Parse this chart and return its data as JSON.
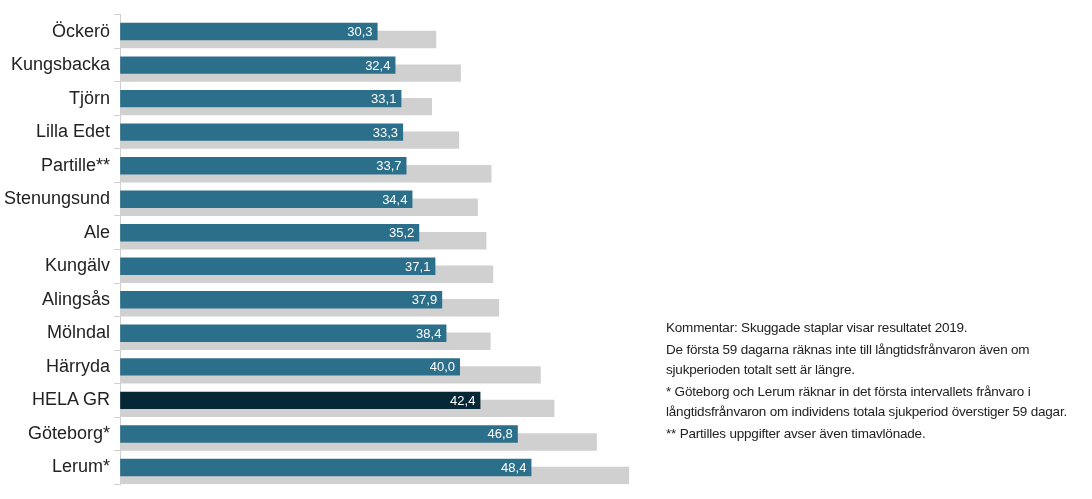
{
  "chart_data": {
    "type": "bar",
    "orientation": "horizontal",
    "legend": false,
    "tick_labels": "y",
    "categories": [
      "Öckerö",
      "Kungsbacka",
      "Tjörn",
      "Lilla Edet",
      "Partille**",
      "Stenungsund",
      "Ale",
      "Kungälv",
      "Alingsås",
      "Mölndal",
      "Härryda",
      "HELA GR",
      "Göteborg*",
      "Lerum*"
    ],
    "series": [
      {
        "colors": [
          "#2c6f8a",
          "#2c6f8a",
          "#2c6f8a",
          "#2c6f8a",
          "#2c6f8a",
          "#2c6f8a",
          "#2c6f8a",
          "#2c6f8a",
          "#2c6f8a",
          "#2c6f8a",
          "#2c6f8a",
          "#062735",
          "#2c6f8a",
          "#2c6f8a"
        ],
        "values": [
          30.3,
          32.4,
          33.1,
          33.3,
          33.7,
          34.4,
          35.2,
          37.1,
          37.9,
          38.4,
          40.0,
          42.4,
          46.8,
          48.4
        ],
        "value_labels": [
          "30,3",
          "32,4",
          "33,1",
          "33,3",
          "33,7",
          "34,4",
          "35,2",
          "37,1",
          "37,9",
          "38,4",
          "40,0",
          "42,4",
          "46,8",
          "48,4"
        ]
      },
      {
        "color": "#d0d0d0",
        "values": [
          37.2,
          40.1,
          36.7,
          39.9,
          43.7,
          42.1,
          43.1,
          43.9,
          44.6,
          43.6,
          49.5,
          51.1,
          56.1,
          59.9
        ]
      }
    ],
    "annotations": [
      "Kommentar: Skuggade staplar visar resultatet 2019.",
      "De första 59 dagarna räknas inte till långtidsfrånvaron även om sjukperioden totalt sett är längre.",
      "* Göteborg och Lerum räknar in det första intervallets frånvaro i långtidsfrånvaron om individens totala sjukperiod överstiger 59 dagar.",
      "** Partilles uppgifter avser även timavlönade."
    ]
  }
}
